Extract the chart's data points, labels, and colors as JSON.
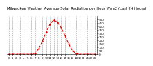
{
  "title_line1": "Milwaukee Weather Average Solar Radiation per Hour W/m2 (Last 24 Hours)",
  "x_values": [
    0,
    1,
    2,
    3,
    4,
    5,
    6,
    7,
    8,
    9,
    10,
    11,
    12,
    13,
    14,
    15,
    16,
    17,
    18,
    19,
    20,
    21,
    22,
    23
  ],
  "y_values": [
    0,
    0,
    0,
    0,
    0,
    0,
    0,
    15,
    80,
    190,
    320,
    430,
    490,
    460,
    380,
    270,
    150,
    55,
    10,
    0,
    0,
    0,
    0,
    0
  ],
  "ylim": [
    0,
    550
  ],
  "xlim": [
    -0.5,
    23.5
  ],
  "yticks": [
    0,
    50,
    100,
    150,
    200,
    250,
    300,
    350,
    400,
    450,
    500
  ],
  "ytick_labels": [
    "0",
    "50",
    "100",
    "150",
    "200",
    "250",
    "300",
    "350",
    "400",
    "450",
    "500"
  ],
  "line_color": "#dd0000",
  "line_style": "--",
  "line_width": 0.8,
  "marker": ".",
  "marker_size": 1.5,
  "bg_color": "#ffffff",
  "plot_bg_color": "#ffffff",
  "grid_color": "#999999",
  "grid_style": "--",
  "grid_linewidth": 0.4,
  "title_fontsize": 3.8,
  "tick_fontsize": 3.0
}
